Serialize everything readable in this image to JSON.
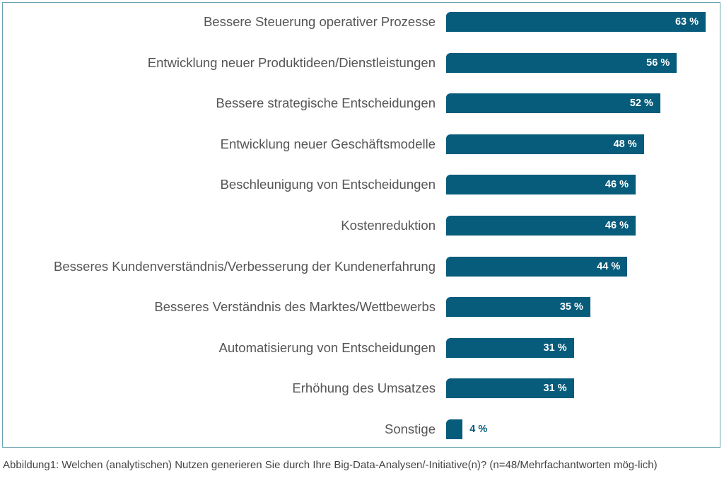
{
  "chart_data": {
    "type": "bar",
    "orientation": "horizontal",
    "categories": [
      "Bessere Steuerung operativer Prozesse",
      "Entwicklung neuer Produktideen/Dienstleistungen",
      "Bessere strategische Entscheidungen",
      "Entwicklung neuer Geschäftsmodelle",
      "Beschleunigung von Entscheidungen",
      "Kostenreduktion",
      "Besseres Kundenverständnis/Verbesserung der Kundenerfahrung",
      "Besseres Verständnis des Marktes/Wettbewerbs",
      "Automatisierung von Entscheidungen",
      "Erhöhung des Umsatzes",
      "Sonstige"
    ],
    "values": [
      63,
      56,
      52,
      48,
      46,
      46,
      44,
      35,
      31,
      31,
      4
    ],
    "value_labels": [
      "63 %",
      "56 %",
      "52 %",
      "48 %",
      "46 %",
      "46 %",
      "44 %",
      "35 %",
      "31 %",
      "31 %",
      "4 %"
    ],
    "unit": "%",
    "xlim": [
      0,
      63
    ],
    "grid": false,
    "bar_color": "#075b7b",
    "frame_color": "#6aa3b1"
  },
  "caption": "Abbildung1: Welchen (analytischen) Nutzen generieren Sie durch Ihre Big-Data-Analysen/-Initiative(n)? (n=48/Mehrfachantworten mög-lich)"
}
